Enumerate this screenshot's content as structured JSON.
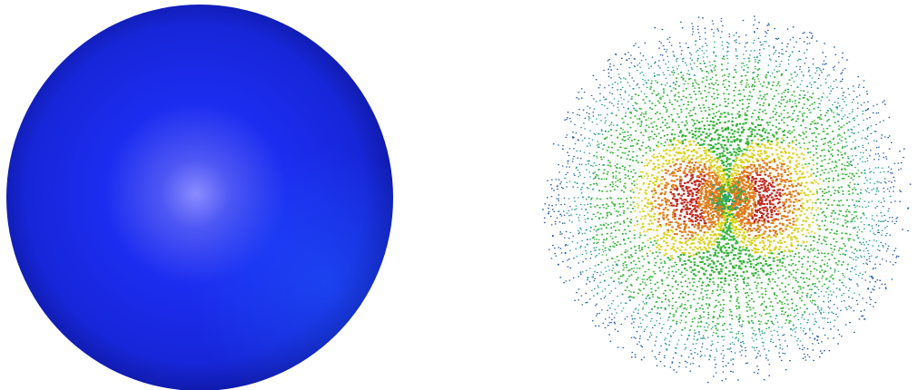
{
  "panels": [
    {
      "id": "solid-sphere",
      "render": "shaded-sphere",
      "colors": {
        "highlight": "#8a8cff",
        "base": "#1c2df0",
        "mid": "#1726d8",
        "rim": "#0b148f",
        "reflection": "#1e58ff"
      }
    },
    {
      "id": "particle-sphere",
      "render": "radial-particle-field",
      "colors": {
        "core": "#c2281c",
        "hot": "#e07a18",
        "warm": "#d9d21c",
        "mid": "#35b53a",
        "cool": "#1e9a8a",
        "edge": "#2458a8"
      }
    }
  ]
}
